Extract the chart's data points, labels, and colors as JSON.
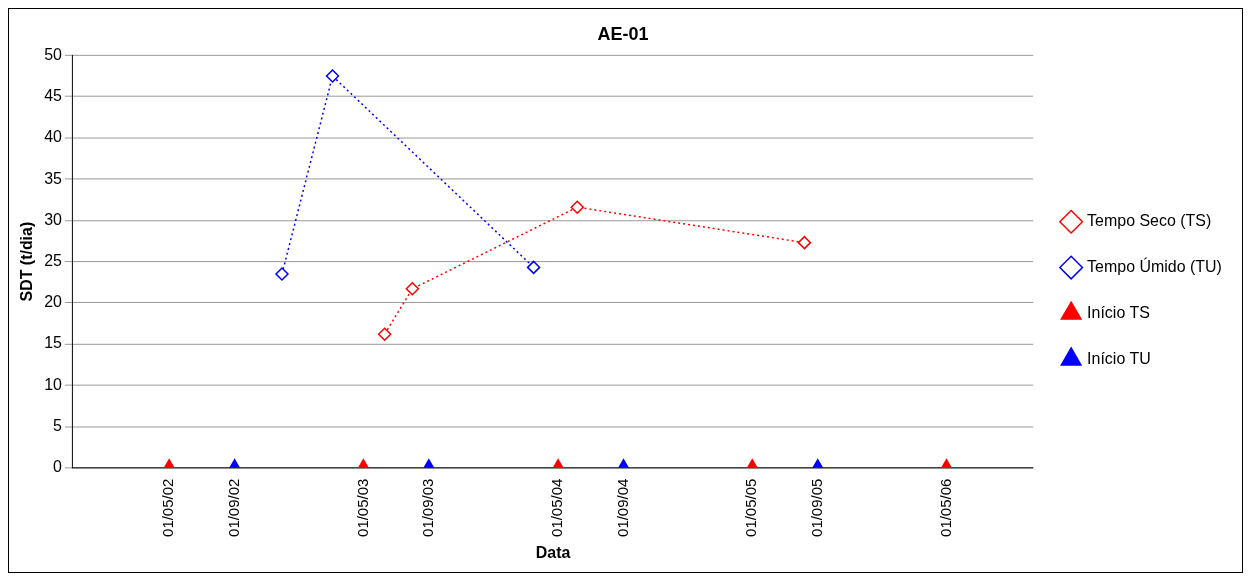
{
  "chart_data": {
    "type": "line",
    "title": "AE-01",
    "xlabel": "Data",
    "ylabel": "SDT (t/dia)",
    "xlim": [
      "2001-11-01",
      "2006-10-11"
    ],
    "xticks": [
      {
        "value": "2002-05-01",
        "label": "01/05/02"
      },
      {
        "value": "2002-09-01",
        "label": "01/09/02"
      },
      {
        "value": "2003-05-01",
        "label": "01/05/03"
      },
      {
        "value": "2003-09-01",
        "label": "01/09/03"
      },
      {
        "value": "2004-05-01",
        "label": "01/05/04"
      },
      {
        "value": "2004-09-01",
        "label": "01/09/04"
      },
      {
        "value": "2005-05-01",
        "label": "01/05/05"
      },
      {
        "value": "2005-09-01",
        "label": "01/09/05"
      },
      {
        "value": "2006-05-01",
        "label": "01/05/06"
      }
    ],
    "ylim": [
      0,
      50
    ],
    "yticks": [
      0,
      5,
      10,
      15,
      20,
      25,
      30,
      35,
      40,
      45,
      50
    ],
    "grid": "y",
    "legend": "right",
    "series": [
      {
        "name": "Tempo Seco (TS)",
        "color": "#ff0000",
        "marker": "diamond",
        "line_style": "dotted",
        "x": [
          "2003-06-10",
          "2003-08-01",
          "2004-06-06",
          "2005-08-07"
        ],
        "values": [
          16.2,
          21.7,
          31.6,
          27.3
        ]
      },
      {
        "name": "Tempo Úmido (TU)",
        "color": "#0000ff",
        "marker": "diamond",
        "line_style": "dotted",
        "x": [
          "2002-11-29",
          "2003-03-04",
          "2004-03-16"
        ],
        "values": [
          23.5,
          47.5,
          24.3
        ]
      },
      {
        "name": "Início TS",
        "type": "scatter",
        "color": "#ff0000",
        "marker": "triangle",
        "x": [
          "2002-05-01",
          "2003-05-01",
          "2004-05-01",
          "2005-05-01",
          "2006-05-01"
        ],
        "values": [
          0,
          0,
          0,
          0,
          0
        ]
      },
      {
        "name": "Início TU",
        "type": "scatter",
        "color": "#0000ff",
        "marker": "triangle",
        "x": [
          "2002-09-01",
          "2003-09-01",
          "2004-09-01",
          "2005-09-01"
        ],
        "values": [
          0,
          0,
          0,
          0
        ]
      }
    ]
  }
}
